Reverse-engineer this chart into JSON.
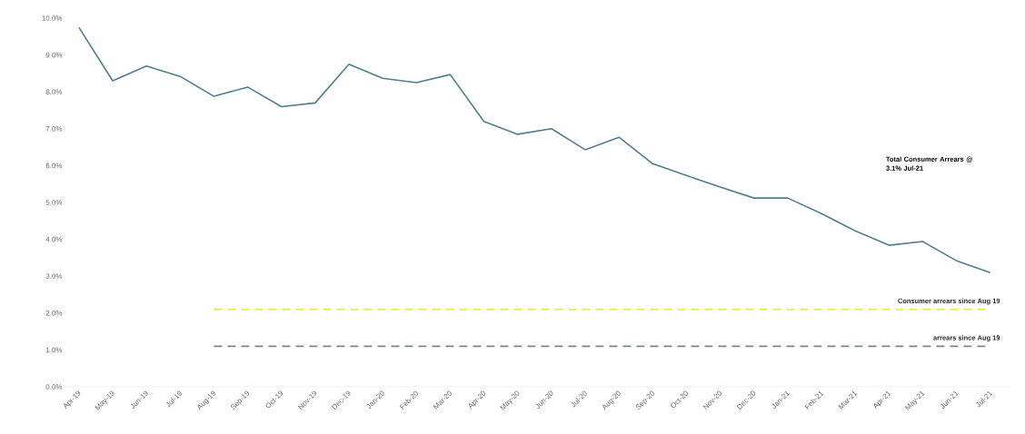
{
  "chart_data": {
    "type": "line",
    "categories": [
      "Apr-19",
      "May-19",
      "Jun-19",
      "Jul-19",
      "Aug-19",
      "Sep-19",
      "Oct-19",
      "Nov-19",
      "Dec-19",
      "Jan-20",
      "Feb-20",
      "Mar-20",
      "Apr-20",
      "May-20",
      "Jun-20",
      "Jul-20",
      "Aug-20",
      "Sep-20",
      "Oct-20",
      "Nov-20",
      "Dec-20",
      "Jan-21",
      "Feb-21",
      "Mar-21",
      "Apr-21",
      "May-21",
      "Jun-21",
      "Jul-21"
    ],
    "series": [
      {
        "color": "#4f7e8e",
        "values": [
          9.75,
          8.3,
          8.7,
          8.42,
          7.88,
          8.13,
          7.6,
          7.7,
          8.75,
          8.37,
          8.25,
          8.47,
          7.2,
          6.85,
          7.0,
          6.43,
          6.77,
          6.05,
          5.73,
          5.42,
          5.12,
          5.12,
          4.7,
          4.23,
          3.84,
          3.94,
          3.42,
          3.1
        ]
      },
      {
        "name": "Consumer arrears since Aug 19",
        "color": "#ecea55",
        "line_style": "dashed",
        "values": [
          null,
          null,
          null,
          null,
          2.1,
          2.1,
          2.1,
          2.1,
          2.1,
          2.1,
          2.1,
          2.1,
          2.1,
          2.1,
          2.1,
          2.1,
          2.1,
          2.1,
          2.1,
          2.1,
          2.1,
          2.1,
          2.1,
          2.1,
          2.1,
          2.1,
          2.1,
          2.1
        ]
      },
      {
        "name": "arrears since Aug 19",
        "color": "#7b878a",
        "line_style": "dashed",
        "values": [
          null,
          null,
          null,
          null,
          1.1,
          1.1,
          1.1,
          1.1,
          1.1,
          1.1,
          1.1,
          1.1,
          1.1,
          1.1,
          1.1,
          1.1,
          1.1,
          1.1,
          1.1,
          1.1,
          1.1,
          1.1,
          1.1,
          1.1,
          1.1,
          1.1,
          1.1,
          1.1
        ]
      }
    ],
    "ylim": [
      0,
      10
    ],
    "yticks": [
      {
        "value": 0,
        "label": "0.0%"
      },
      {
        "value": 1,
        "label": "1.0%"
      },
      {
        "value": 2,
        "label": "2.0%"
      },
      {
        "value": 3,
        "label": "3.0%"
      },
      {
        "value": 4,
        "label": "4.0%"
      },
      {
        "value": 5,
        "label": "5.0%"
      },
      {
        "value": 6,
        "label": "6.0%"
      },
      {
        "value": 7,
        "label": "7.0%"
      },
      {
        "value": 8,
        "label": "8.0%"
      },
      {
        "value": 9,
        "label": "9.0%"
      },
      {
        "value": 10,
        "label": "10.0%"
      }
    ],
    "annotations": [
      "Total Consumer Arrears @ 3.1% Jul-21"
    ],
    "legend": false,
    "grid": false,
    "marker": "none"
  }
}
